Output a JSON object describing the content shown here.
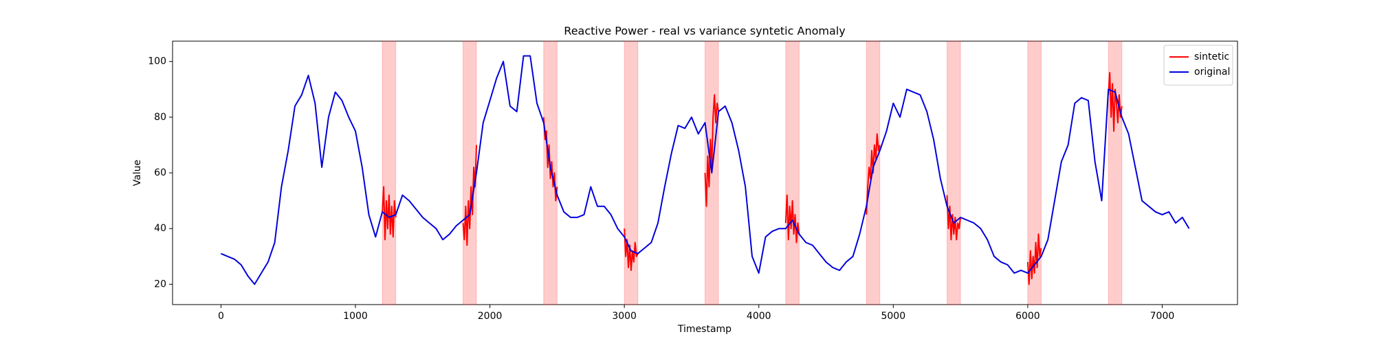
{
  "chart_data": {
    "type": "line",
    "title": "Reactive Power - real vs variance syntetic Anomaly",
    "x_label": "Timestamp",
    "y_label": "Value",
    "xlim": [
      -360,
      7560
    ],
    "ylim": [
      12.7,
      107.3
    ],
    "xticks": [
      0,
      1000,
      2000,
      3000,
      4000,
      5000,
      6000,
      7000
    ],
    "yticks": [
      20,
      40,
      60,
      80,
      100
    ],
    "legend": "upper right",
    "span_color": "rgba(255,0,0,0.2)",
    "spans": [
      [
        1200,
        1300
      ],
      [
        1800,
        1900
      ],
      [
        2400,
        2500
      ],
      [
        3000,
        3100
      ],
      [
        3600,
        3700
      ],
      [
        4200,
        4300
      ],
      [
        4800,
        4900
      ],
      [
        5400,
        5500
      ],
      [
        6000,
        6100
      ],
      [
        6600,
        6700
      ]
    ],
    "series": [
      {
        "name": "sintetic",
        "color": "#ff0000",
        "x": [
          1200,
          1210,
          1220,
          1230,
          1240,
          1250,
          1260,
          1270,
          1280,
          1290,
          1300,
          null,
          1800,
          1810,
          1820,
          1830,
          1840,
          1850,
          1860,
          1870,
          1880,
          1890,
          1900,
          null,
          2400,
          2410,
          2420,
          2430,
          2440,
          2450,
          2460,
          2470,
          2480,
          2490,
          2500,
          null,
          3000,
          3010,
          3020,
          3030,
          3040,
          3050,
          3060,
          3070,
          3080,
          3090,
          3100,
          null,
          3600,
          3610,
          3620,
          3630,
          3640,
          3650,
          3660,
          3670,
          3680,
          3690,
          3700,
          null,
          4200,
          4210,
          4220,
          4230,
          4240,
          4250,
          4260,
          4270,
          4280,
          4290,
          4300,
          null,
          4800,
          4810,
          4820,
          4830,
          4840,
          4850,
          4860,
          4870,
          4880,
          4890,
          4900,
          null,
          5400,
          5410,
          5420,
          5430,
          5440,
          5450,
          5460,
          5470,
          5480,
          5490,
          5500,
          null,
          6000,
          6010,
          6020,
          6030,
          6040,
          6050,
          6060,
          6070,
          6080,
          6090,
          6100,
          null,
          6600,
          6610,
          6620,
          6630,
          6640,
          6650,
          6660,
          6670,
          6680,
          6690,
          6700
        ],
        "values": [
          46,
          55,
          36,
          50,
          40,
          52,
          38,
          48,
          37,
          50,
          44,
          null,
          42,
          36,
          48,
          34,
          50,
          40,
          55,
          45,
          62,
          55,
          70,
          null,
          80,
          72,
          75,
          62,
          70,
          58,
          64,
          55,
          60,
          50,
          55,
          null,
          40,
          30,
          36,
          26,
          34,
          25,
          32,
          28,
          35,
          30,
          31,
          null,
          60,
          48,
          66,
          55,
          72,
          62,
          80,
          88,
          78,
          85,
          82,
          null,
          42,
          52,
          36,
          48,
          40,
          50,
          38,
          45,
          35,
          42,
          38,
          null,
          45,
          55,
          62,
          58,
          68,
          60,
          70,
          65,
          74,
          68,
          70,
          null,
          52,
          40,
          48,
          36,
          45,
          38,
          44,
          36,
          42,
          40,
          44,
          null,
          28,
          20,
          32,
          22,
          30,
          24,
          35,
          26,
          38,
          30,
          33,
          null,
          88,
          96,
          80,
          92,
          75,
          90,
          85,
          78,
          88,
          80,
          84
        ]
      },
      {
        "name": "original",
        "color": "#0000dd",
        "x": [
          0,
          50,
          100,
          150,
          200,
          250,
          300,
          350,
          400,
          450,
          500,
          550,
          600,
          650,
          700,
          750,
          800,
          850,
          900,
          950,
          1000,
          1050,
          1100,
          1150,
          1200,
          1250,
          1300,
          1350,
          1400,
          1450,
          1500,
          1550,
          1600,
          1650,
          1700,
          1750,
          1800,
          1850,
          1900,
          1950,
          2000,
          2050,
          2100,
          2150,
          2200,
          2250,
          2300,
          2350,
          2400,
          2450,
          2500,
          2550,
          2600,
          2650,
          2700,
          2750,
          2800,
          2850,
          2900,
          2950,
          3000,
          3050,
          3100,
          3150,
          3200,
          3250,
          3300,
          3350,
          3400,
          3450,
          3500,
          3550,
          3600,
          3650,
          3700,
          3750,
          3800,
          3850,
          3900,
          3950,
          4000,
          4050,
          4100,
          4150,
          4200,
          4250,
          4300,
          4350,
          4400,
          4450,
          4500,
          4550,
          4600,
          4650,
          4700,
          4750,
          4800,
          4850,
          4900,
          4950,
          5000,
          5050,
          5100,
          5150,
          5200,
          5250,
          5300,
          5350,
          5400,
          5450,
          5500,
          5550,
          5600,
          5650,
          5700,
          5750,
          5800,
          5850,
          5900,
          5950,
          6000,
          6050,
          6100,
          6150,
          6200,
          6250,
          6300,
          6350,
          6400,
          6450,
          6500,
          6550,
          6600,
          6650,
          6700,
          6750,
          6800,
          6850,
          6900,
          6950,
          7000,
          7050,
          7100,
          7150,
          7200
        ],
        "values": [
          31,
          30,
          29,
          27,
          23,
          20,
          24,
          28,
          35,
          55,
          68,
          84,
          88,
          95,
          85,
          62,
          80,
          89,
          86,
          80,
          75,
          62,
          45,
          37,
          46,
          44,
          45,
          52,
          50,
          47,
          44,
          42,
          40,
          36,
          38,
          41,
          43,
          45,
          60,
          78,
          86,
          94,
          100,
          84,
          82,
          102,
          102,
          85,
          78,
          62,
          52,
          46,
          44,
          44,
          45,
          55,
          48,
          48,
          45,
          40,
          37,
          32,
          31,
          33,
          35,
          42,
          55,
          67,
          77,
          76,
          80,
          74,
          78,
          60,
          82,
          84,
          78,
          68,
          55,
          30,
          24,
          37,
          39,
          40,
          40,
          43,
          38,
          35,
          34,
          31,
          28,
          26,
          25,
          28,
          30,
          38,
          48,
          62,
          68,
          75,
          85,
          80,
          90,
          89,
          88,
          82,
          72,
          58,
          48,
          42,
          44,
          43,
          42,
          40,
          36,
          30,
          28,
          27,
          24,
          25,
          24,
          27,
          30,
          36,
          50,
          64,
          70,
          85,
          87,
          86,
          64,
          50,
          90,
          89,
          80,
          74,
          62,
          50,
          48,
          46,
          45,
          46,
          42,
          44,
          40
        ]
      }
    ]
  }
}
